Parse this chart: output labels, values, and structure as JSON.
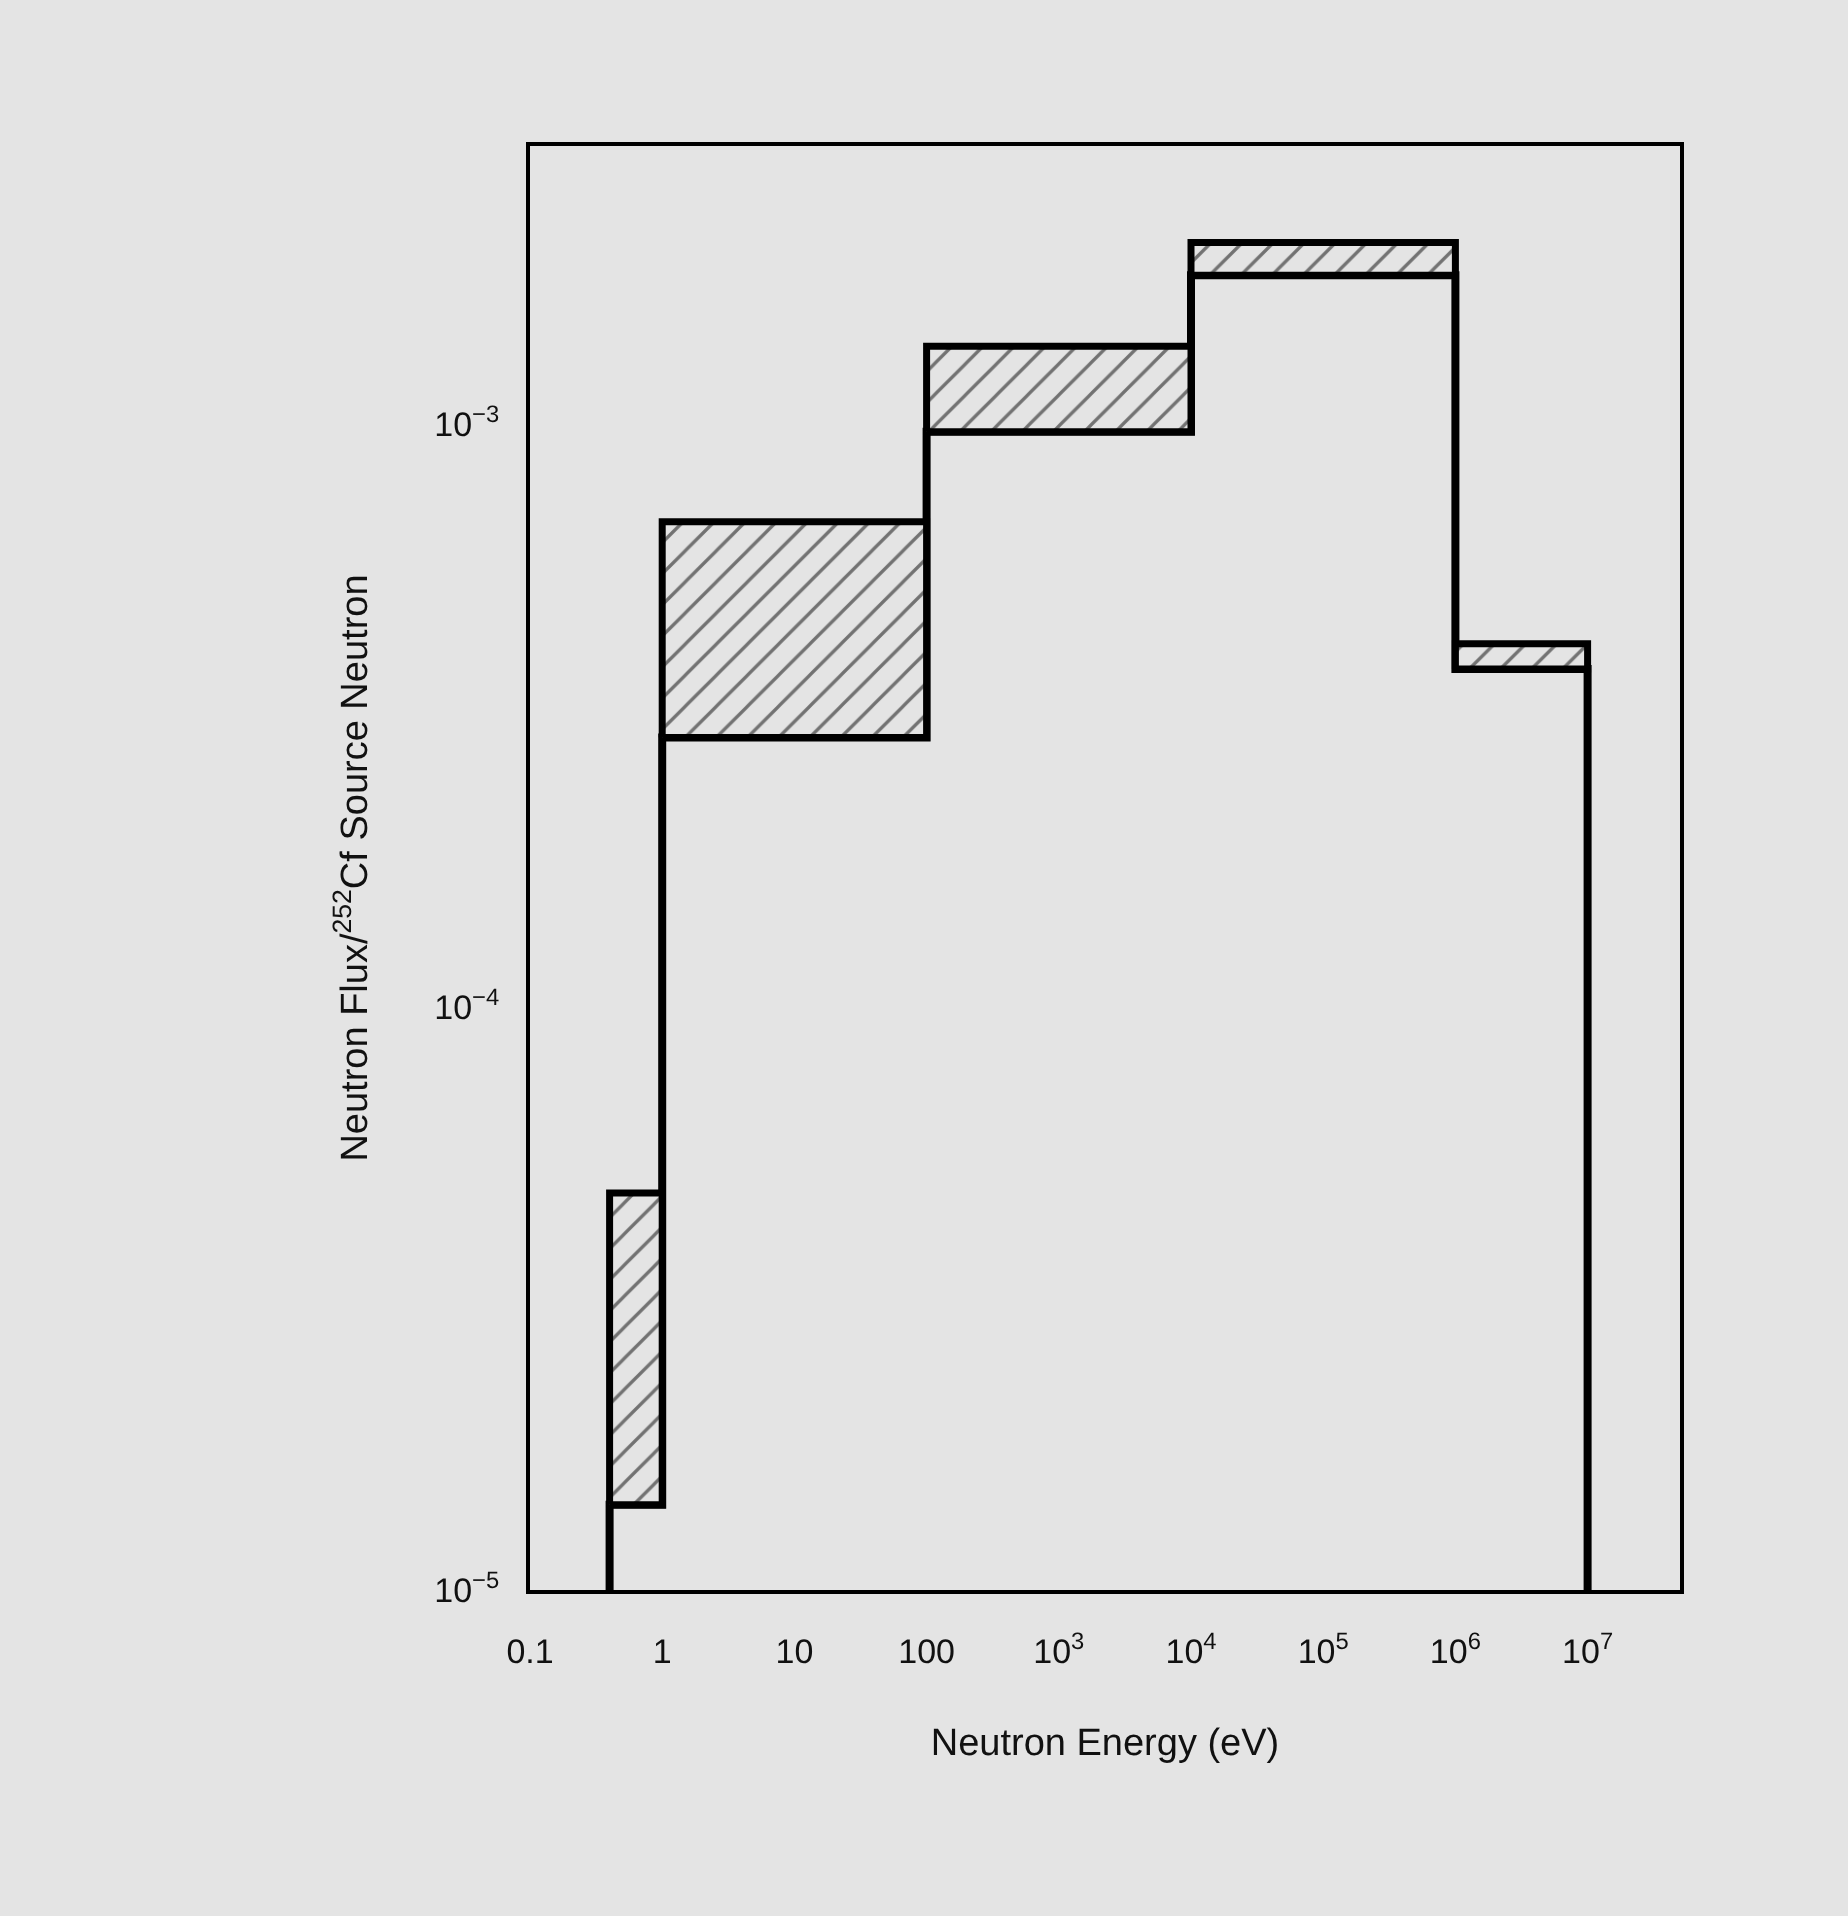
{
  "chart_data": {
    "type": "histogram",
    "xlabel": "Neutron Energy (eV)",
    "ylabel": "Neutron Flux/$^{252}$Cf Source Neutron",
    "bins": [
      0.4,
      1,
      100,
      10000,
      1000000,
      10000000
    ],
    "series": [
      {
        "color": "#000000",
        "base": [
          1.4e-05,
          0.00029,
          0.00097,
          0.0018,
          0.00038
        ],
        "values": [
          3.4e-05,
          0.00039,
          0.00039,
          0.00025,
          4e-05
        ]
      },
      {
        "type": "step",
        "color": "#000000",
        "x": [
          0.4,
          1,
          100,
          10000,
          1000000,
          10000000,
          10000000
        ],
        "values": [
          1e-05,
          1.4e-05,
          0.00029,
          0.00097,
          0.0018,
          0.00038,
          1e-05
        ]
      }
    ],
    "log": "xy",
    "grid": false,
    "marker": "none",
    "line_style": "solid",
    "xlim": [
      0.1,
      50000000
    ],
    "ylim": [
      1e-05,
      0.003
    ],
    "xticks": [
      0.1,
      1,
      10,
      100,
      {
        "value": 1000,
        "label": "10$^{3}$"
      },
      {
        "value": 10000,
        "label": "10$^{4}$"
      },
      {
        "value": 100000,
        "label": "10$^{5}$"
      },
      {
        "value": 1000000,
        "label": "10$^{6}$"
      },
      {
        "value": 10000000,
        "label": "10$^{7}$"
      }
    ],
    "yticks": [
      {
        "value": 1e-05,
        "label": "10$^{−5}$"
      },
      {
        "value": 0.0001,
        "label": "10$^{−4}$"
      },
      {
        "value": 0.001,
        "label": "10$^{−3}$"
      }
    ]
  }
}
